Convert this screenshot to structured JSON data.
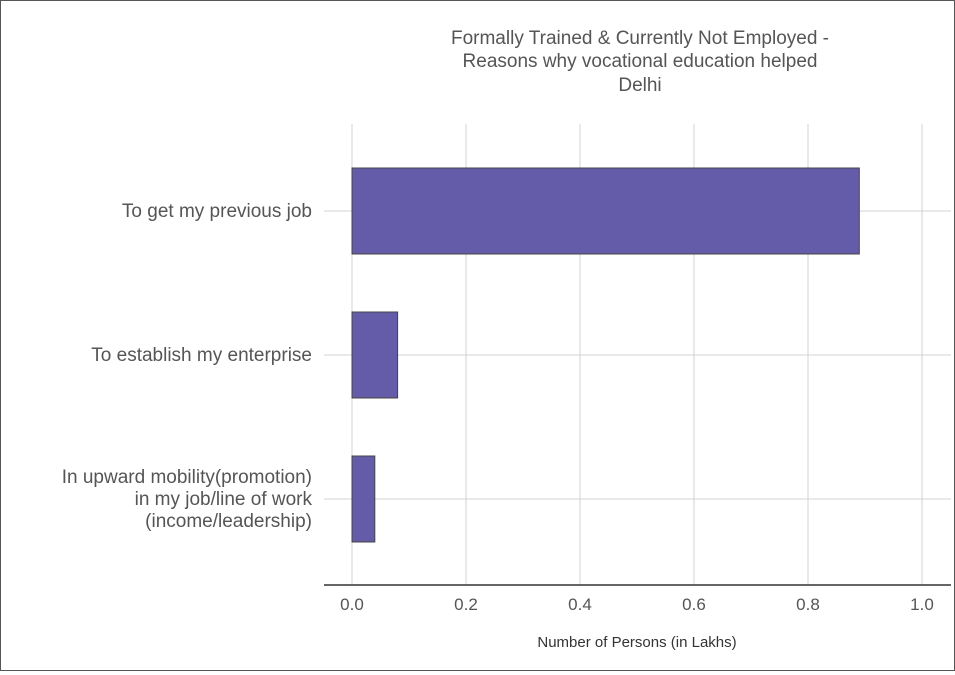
{
  "chart_data": {
    "type": "bar",
    "orientation": "horizontal",
    "title_lines": [
      "Formally Trained & Currently Not Employed -",
      "Reasons why vocational education helped",
      "Delhi"
    ],
    "categories": [
      [
        "To get my previous job"
      ],
      [
        "To establish my enterprise"
      ],
      [
        "In upward mobility(promotion)",
        "in my job/line of work",
        "(income/leadership)"
      ]
    ],
    "values": [
      0.89,
      0.08,
      0.04
    ],
    "xlabel": "Number of Persons (in Lakhs)",
    "xlim": [
      0,
      1.0
    ],
    "xticks": [
      "0.0",
      "0.2",
      "0.4",
      "0.6",
      "0.8",
      "1.0"
    ],
    "grid": true,
    "bar_color": "#655ca9",
    "grid_color": "#d3d3d3"
  }
}
